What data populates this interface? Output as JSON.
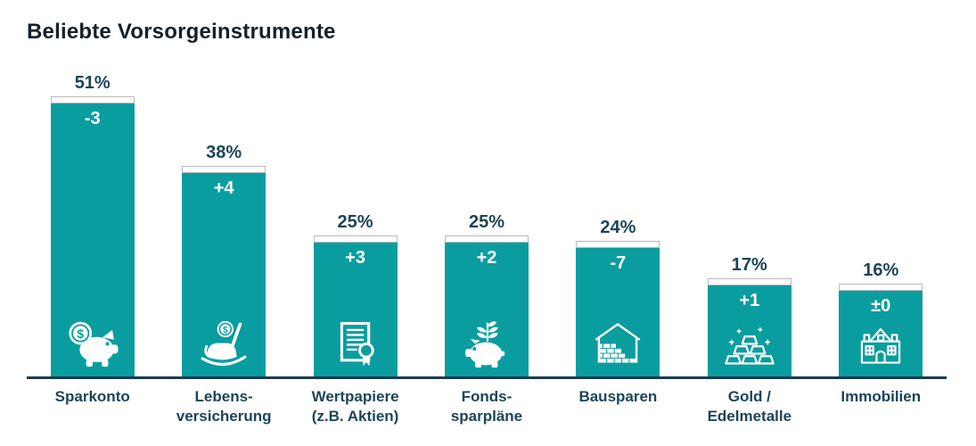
{
  "title": "Beliebte Vorsorgeinstrumente",
  "accent_color": "#0a9d9f",
  "text_color": "#1d4456",
  "axis_color": "#1d3a50",
  "chart_data": {
    "type": "bar",
    "title": "Beliebte Vorsorgeinstrumente",
    "unit": "%",
    "categories": [
      "Sparkonto",
      "Lebens-\nversicherung",
      "Wertpapiere\n(z.B. Aktien)",
      "Fonds-\nsparpläne",
      "Bausparen",
      "Gold /\nEdelmetalle",
      "Immobilien"
    ],
    "values": [
      51,
      38,
      25,
      25,
      24,
      17,
      16
    ],
    "value_labels": [
      "51%",
      "38%",
      "25%",
      "25%",
      "24%",
      "17%",
      "16%"
    ],
    "change_labels": [
      "-3",
      "+4",
      "+3",
      "+2",
      "-7",
      "+1",
      "±0"
    ],
    "icons": [
      "piggy-bank-coin-icon",
      "rocking-chair-coin-icon",
      "certificate-icon",
      "piggy-bank-plant-icon",
      "brick-house-icon",
      "gold-bars-icon",
      "house-icon"
    ],
    "bar_color": "#0a9d9f",
    "ylim": [
      0,
      55
    ],
    "grid": false,
    "legend": false,
    "value_label_position": "above-bar",
    "change_label_position": "inside-bar-top"
  }
}
